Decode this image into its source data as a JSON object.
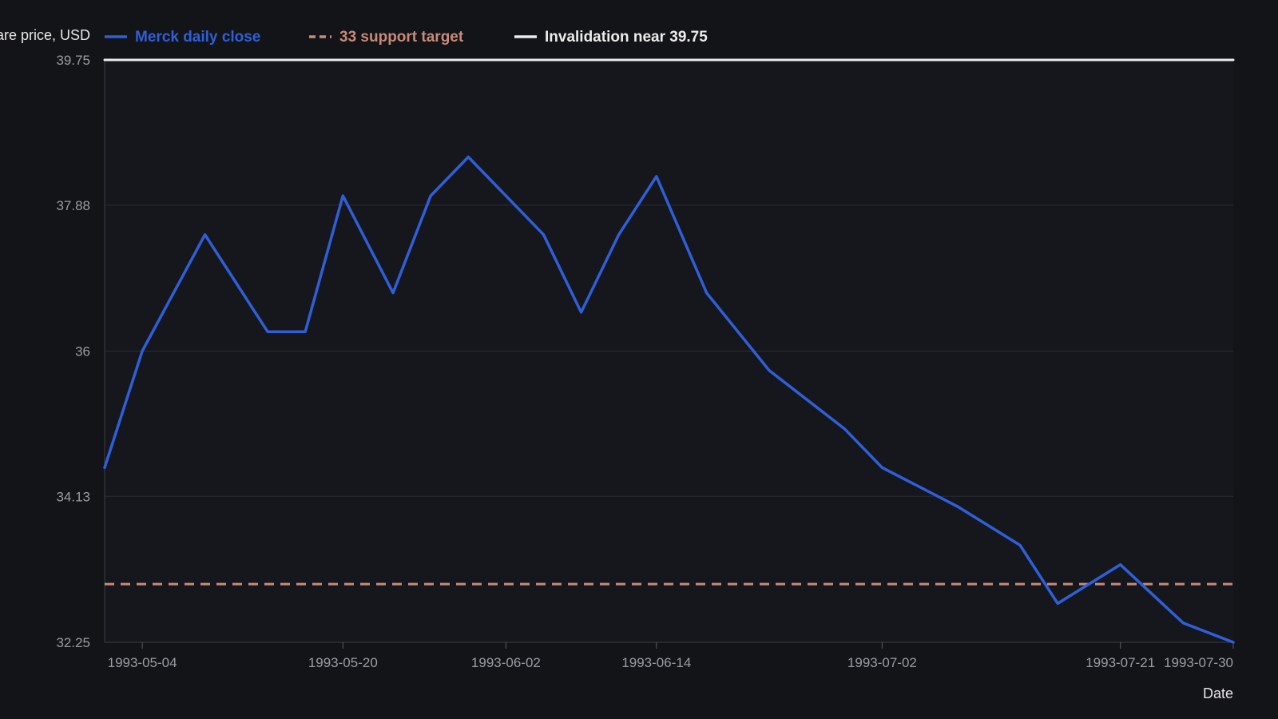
{
  "chart_data": {
    "type": "line",
    "ylabel": "Share price, USD",
    "xlabel": "Date",
    "ylim": [
      32.25,
      39.75
    ],
    "yticks": [
      "39.75",
      "37.88",
      "36",
      "34.13",
      "32.25"
    ],
    "xticks": [
      "1993-05-04",
      "1993-05-20",
      "1993-06-02",
      "1993-06-14",
      "1993-07-02",
      "1993-07-21",
      "1993-07-30"
    ],
    "grid": true,
    "legend_position": "top",
    "series": [
      {
        "name": "Merck daily close",
        "color": "#2f5fd8",
        "style": "solid",
        "points": [
          {
            "x": "1993-05-01",
            "y": 34.5
          },
          {
            "x": "1993-05-04",
            "y": 36.0
          },
          {
            "x": "1993-05-09",
            "y": 37.5
          },
          {
            "x": "1993-05-14",
            "y": 36.25
          },
          {
            "x": "1993-05-17",
            "y": 36.25
          },
          {
            "x": "1993-05-20",
            "y": 38.0
          },
          {
            "x": "1993-05-24",
            "y": 36.75
          },
          {
            "x": "1993-05-27",
            "y": 38.0
          },
          {
            "x": "1993-05-30",
            "y": 38.5
          },
          {
            "x": "1993-06-05",
            "y": 37.5
          },
          {
            "x": "1993-06-08",
            "y": 36.5
          },
          {
            "x": "1993-06-11",
            "y": 37.5
          },
          {
            "x": "1993-06-14",
            "y": 38.25
          },
          {
            "x": "1993-06-18",
            "y": 36.75
          },
          {
            "x": "1993-06-23",
            "y": 35.75
          },
          {
            "x": "1993-06-29",
            "y": 35.0
          },
          {
            "x": "1993-07-02",
            "y": 34.5
          },
          {
            "x": "1993-07-08",
            "y": 34.0
          },
          {
            "x": "1993-07-13",
            "y": 33.5
          },
          {
            "x": "1993-07-16",
            "y": 32.75
          },
          {
            "x": "1993-07-21",
            "y": 33.25
          },
          {
            "x": "1993-07-26",
            "y": 32.5
          },
          {
            "x": "1993-07-30",
            "y": 32.25
          }
        ]
      },
      {
        "name": "33 support target",
        "color": "#c98a7a",
        "style": "dashed",
        "points": [
          {
            "x": "1993-05-01",
            "y": 33.0
          },
          {
            "x": "1993-07-30",
            "y": 33.0
          }
        ]
      },
      {
        "name": "Invalidation near 39.75",
        "color": "#ececec",
        "style": "solid",
        "points": [
          {
            "x": "1993-05-01",
            "y": 39.75
          },
          {
            "x": "1993-07-30",
            "y": 39.75
          }
        ]
      }
    ]
  }
}
